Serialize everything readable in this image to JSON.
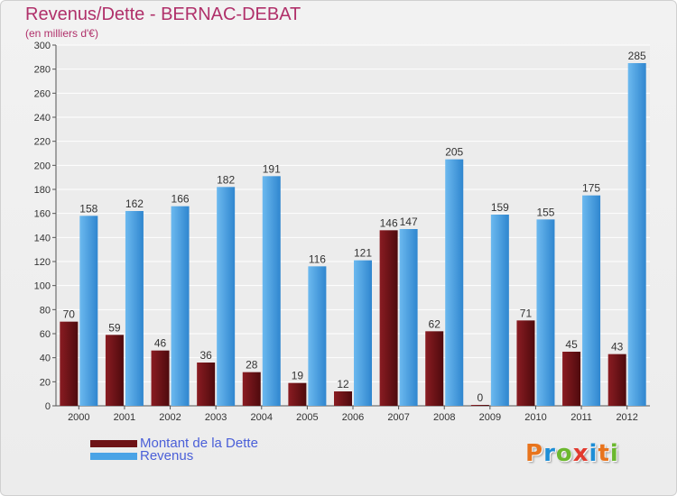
{
  "header": {
    "title": "Revenus/Dette - BERNAC-DEBAT",
    "subtitle": "(en milliers d'€)"
  },
  "legend": {
    "items": [
      {
        "label": "Montant de la Dette",
        "color": "#6e1216"
      },
      {
        "label": "Revenus",
        "color": "#4aa3e6"
      }
    ]
  },
  "logo": {
    "text": "Proxiti"
  },
  "chart_data": {
    "type": "bar",
    "title": "Revenus/Dette - BERNAC-DEBAT",
    "subtitle": "(en milliers d'€)",
    "categories": [
      "2000",
      "2001",
      "2002",
      "2003",
      "2004",
      "2005",
      "2006",
      "2007",
      "2008",
      "2009",
      "2010",
      "2011",
      "2012"
    ],
    "series": [
      {
        "name": "Montant de la Dette",
        "color": "#6e1216",
        "values": [
          70,
          59,
          46,
          36,
          28,
          19,
          12,
          146,
          62,
          0,
          71,
          45,
          43
        ]
      },
      {
        "name": "Revenus",
        "color": "#4aa3e6",
        "values": [
          158,
          162,
          166,
          182,
          191,
          116,
          121,
          147,
          205,
          159,
          155,
          175,
          285
        ]
      }
    ],
    "ylim": [
      0,
      300
    ],
    "yticks": [
      0,
      20,
      40,
      60,
      80,
      100,
      120,
      140,
      160,
      180,
      200,
      220,
      240,
      260,
      280,
      300
    ],
    "grid": true,
    "legend_position": "bottom-left",
    "data_labels": true
  }
}
